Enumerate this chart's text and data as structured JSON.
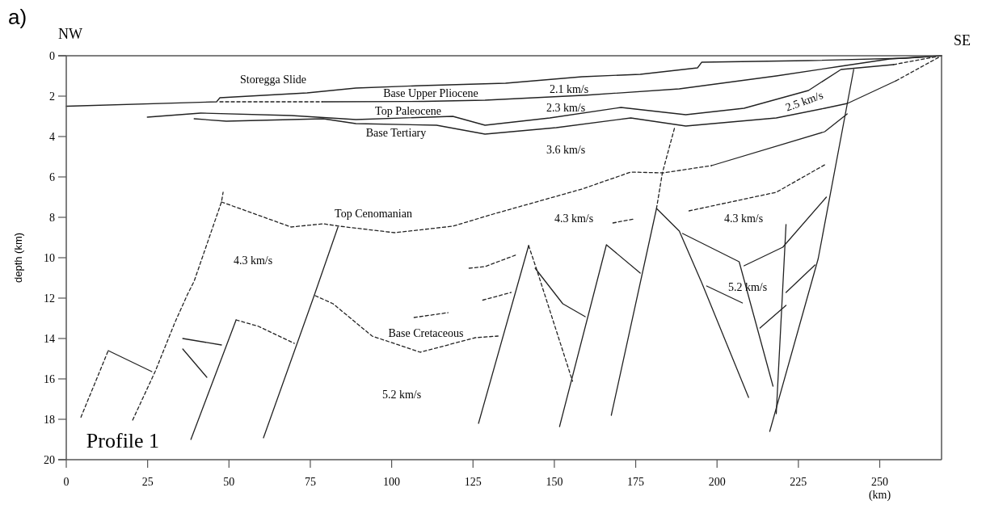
{
  "chart_data": {
    "type": "line",
    "ylabel": "depth (km)",
    "xlabel": "(km)",
    "xlim": [
      0,
      269
    ],
    "ylim": [
      20,
      0
    ],
    "xticks": [
      0,
      25,
      50,
      75,
      100,
      125,
      150,
      175,
      200,
      225,
      250
    ],
    "yticks": [
      0,
      2,
      4,
      6,
      8,
      10,
      12,
      14,
      16,
      18,
      20
    ],
    "grid": false,
    "marker": "none",
    "annotations": [
      "a)",
      "NW",
      "SE",
      "Profile 1",
      "Storegga Slide",
      "Base Upper Pliocene",
      "Top Paleocene",
      "Base Tertiary",
      "Top Cenomanian",
      "Base Cretaceous",
      "2.1 km/s",
      "2.3 km/s",
      "2.5 km/s",
      "3.6 km/s",
      "4.3 km/s",
      "4.3 km/s",
      "4.3 km/s",
      "5.2 km/s",
      "5.2 km/s"
    ],
    "series": [
      {
        "color": "#222222",
        "line_style": "solid",
        "x": [
          0,
          46.2,
          47.2,
          74,
          89,
          109,
          135,
          158.5,
          176.4,
          194,
          195.3,
          228,
          258,
          269
        ],
        "values": [
          2.5,
          2.28,
          2.08,
          1.84,
          1.6,
          1.48,
          1.36,
          1.04,
          0.92,
          0.6,
          0.32,
          0.24,
          0.12,
          0
        ]
      },
      {
        "color": "#222222",
        "line_style": "dashed",
        "x": [
          47.2,
          78.6
        ],
        "values": [
          2.28,
          2.28
        ]
      },
      {
        "color": "#222222",
        "line_style": "solid",
        "x": [
          78.6,
          110,
          128.7,
          160,
          188.4,
          218.2,
          238,
          253,
          269
        ],
        "values": [
          2.28,
          2.26,
          2.2,
          1.95,
          1.64,
          1.0,
          0.52,
          0.16,
          0
        ]
      },
      {
        "color": "#222222",
        "line_style": "solid",
        "x": [
          24.9,
          41.3,
          69.1,
          89,
          118.8,
          128.7,
          148.6,
          170.5,
          190.4,
          208.3,
          228.1,
          238.1,
          254.2
        ],
        "values": [
          3.04,
          2.84,
          2.96,
          3.16,
          3.0,
          3.44,
          3.08,
          2.56,
          2.92,
          2.6,
          1.72,
          0.68,
          0.44
        ]
      },
      {
        "color": "#222222",
        "line_style": "dashed",
        "x": [
          254.2,
          269
        ],
        "values": [
          0.44,
          0
        ]
      },
      {
        "color": "#222222",
        "line_style": "solid",
        "x": [
          39.3,
          49.2,
          79,
          89,
          113.8,
          128.7,
          150.6,
          173.5,
          190.4,
          218.2,
          233.1,
          240.1,
          255
        ],
        "values": [
          3.12,
          3.24,
          3.12,
          3.36,
          3.44,
          3.88,
          3.56,
          3.08,
          3.48,
          3.08,
          2.6,
          2.36,
          1.24
        ]
      },
      {
        "color": "#222222",
        "line_style": "dashed",
        "x": [
          255,
          269
        ],
        "values": [
          1.24,
          0
        ]
      },
      {
        "color": "#222222",
        "line_style": "dashed",
        "x": [
          47.7,
          69.1,
          79,
          84,
          100.9,
          118.8,
          131.2,
          158.5,
          173.5,
          183.4,
          198.3
        ],
        "values": [
          7.24,
          8.48,
          8.32,
          8.44,
          8.76,
          8.44,
          7.84,
          6.6,
          5.76,
          5.8,
          5.44
        ]
      },
      {
        "color": "#222222",
        "line_style": "solid",
        "x": [
          198.3,
          233.1,
          240
        ],
        "values": [
          5.44,
          3.76,
          2.88
        ]
      },
      {
        "color": "#222222",
        "line_style": "dashed",
        "x": [
          4.5,
          12.9
        ],
        "values": [
          17.9,
          14.6
        ]
      },
      {
        "color": "#222222",
        "line_style": "solid",
        "x": [
          12.9,
          26.3
        ],
        "values": [
          14.6,
          15.64
        ]
      },
      {
        "color": "#222222",
        "line_style": "dashed",
        "x": [
          20.4,
          27.3,
          33.3,
          37.3,
          39.3,
          47.7,
          48.2
        ],
        "values": [
          18.04,
          15.64,
          13.24,
          11.8,
          11.16,
          7.24,
          6.76
        ]
      },
      {
        "color": "#222222",
        "line_style": "solid",
        "x": [
          35.8,
          47.7
        ],
        "values": [
          14.0,
          14.32
        ]
      },
      {
        "color": "#222222",
        "line_style": "solid",
        "x": [
          35.8,
          43.2
        ],
        "values": [
          14.52,
          15.92
        ]
      },
      {
        "color": "#222222",
        "line_style": "solid",
        "x": [
          38.3,
          52.2
        ],
        "values": [
          19.0,
          13.08
        ]
      },
      {
        "color": "#222222",
        "line_style": "dashed",
        "x": [
          52.2,
          59.1,
          70.1
        ],
        "values": [
          13.08,
          13.4,
          14.24
        ]
      },
      {
        "color": "#222222",
        "line_style": "solid",
        "x": [
          60.6,
          76,
          83.5
        ],
        "values": [
          18.92,
          11.96,
          8.48
        ]
      },
      {
        "color": "#222222",
        "line_style": "dashed",
        "x": [
          76.5,
          82,
          94,
          108.8,
          125.7,
          132.7
        ],
        "values": [
          11.88,
          12.28,
          13.88,
          14.68,
          13.96,
          13.88
        ]
      },
      {
        "color": "#222222",
        "line_style": "dashed",
        "x": [
          106.9,
          117.3
        ],
        "values": [
          12.96,
          12.72
        ]
      },
      {
        "color": "#222222",
        "line_style": "dashed",
        "x": [
          123.8,
          128.7,
          138.6
        ],
        "values": [
          10.52,
          10.44,
          9.84
        ]
      },
      {
        "color": "#222222",
        "line_style": "dashed",
        "x": [
          128,
          136.7
        ],
        "values": [
          12.1,
          11.72
        ]
      },
      {
        "color": "#222222",
        "line_style": "solid",
        "x": [
          126.7,
          142.1
        ],
        "values": [
          18.2,
          9.4
        ]
      },
      {
        "color": "#222222",
        "line_style": "dashed",
        "x": [
          142.1,
          144.6,
          155.6
        ],
        "values": [
          9.4,
          10.6,
          16.12
        ]
      },
      {
        "color": "#222222",
        "line_style": "solid",
        "x": [
          144.1,
          152.6,
          159.5
        ],
        "values": [
          10.52,
          12.28,
          12.92
        ]
      },
      {
        "color": "#222222",
        "line_style": "solid",
        "x": [
          151.6,
          166,
          176.4
        ],
        "values": [
          18.36,
          9.36,
          10.76
        ]
      },
      {
        "color": "#222222",
        "line_style": "solid",
        "x": [
          167.5,
          181.4,
          188.4,
          195.3,
          209.7
        ],
        "values": [
          17.8,
          7.56,
          8.68,
          11.24,
          16.92
        ]
      },
      {
        "color": "#222222",
        "line_style": "solid",
        "x": [
          189.4,
          206.8,
          217.2
        ],
        "values": [
          8.8,
          10.2,
          16.36
        ]
      },
      {
        "color": "#222222",
        "line_style": "solid",
        "x": [
          208.3,
          220.2,
          233.6
        ],
        "values": [
          10.4,
          9.48,
          7.0
        ]
      },
      {
        "color": "#222222",
        "line_style": "solid",
        "x": [
          221.2,
          218.2
        ],
        "values": [
          8.36,
          17.72
        ]
      },
      {
        "color": "#222222",
        "line_style": "solid",
        "x": [
          213.2,
          221.2
        ],
        "values": [
          13.48,
          12.36
        ]
      },
      {
        "color": "#222222",
        "line_style": "solid",
        "x": [
          221.2,
          230.1
        ],
        "values": [
          11.72,
          10.36
        ]
      },
      {
        "color": "#222222",
        "line_style": "solid",
        "x": [
          196.8,
          207.8
        ],
        "values": [
          11.4,
          12.24
        ]
      },
      {
        "color": "#222222",
        "line_style": "solid",
        "x": [
          242,
          231.1,
          216.2
        ],
        "values": [
          0.68,
          10.04,
          18.6
        ]
      },
      {
        "color": "#222222",
        "line_style": "dashed",
        "x": [
          191.4,
          218.2,
          233.1
        ],
        "values": [
          7.68,
          6.76,
          5.4
        ]
      },
      {
        "color": "#222222",
        "line_style": "dashed",
        "x": [
          168,
          174.5
        ],
        "values": [
          8.28,
          8.08
        ]
      },
      {
        "color": "#222222",
        "line_style": "dashed",
        "x": [
          186.9,
          183.2,
          181.4
        ],
        "values": [
          3.6,
          5.8,
          7.56
        ]
      }
    ]
  }
}
